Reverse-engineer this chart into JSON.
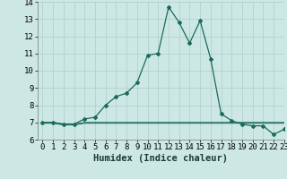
{
  "x": [
    0,
    1,
    2,
    3,
    4,
    5,
    6,
    7,
    8,
    9,
    10,
    11,
    12,
    13,
    14,
    15,
    16,
    17,
    18,
    19,
    20,
    21,
    22,
    23
  ],
  "y_main": [
    7.0,
    7.0,
    6.9,
    6.9,
    7.2,
    7.3,
    8.0,
    8.5,
    8.7,
    9.3,
    10.9,
    11.0,
    13.7,
    12.8,
    11.6,
    12.9,
    10.7,
    7.5,
    7.1,
    6.9,
    6.8,
    6.8,
    6.3,
    6.6
  ],
  "y_flat1": [
    7.0,
    7.0,
    6.9,
    6.9,
    7.0,
    7.0,
    7.0,
    7.0,
    7.0,
    7.0,
    7.0,
    7.0,
    7.0,
    7.0,
    7.0,
    7.0,
    7.0,
    7.0,
    7.0,
    7.0,
    7.0,
    7.0,
    7.0,
    7.0
  ],
  "y_flat2": [
    6.95,
    6.95,
    6.85,
    6.85,
    6.95,
    6.95,
    6.95,
    6.95,
    6.95,
    6.95,
    6.95,
    6.95,
    6.95,
    6.95,
    6.95,
    6.95,
    6.95,
    6.95,
    6.95,
    6.95,
    6.95,
    6.95,
    6.95,
    6.95
  ],
  "line_color": "#1a6b5a",
  "bg_color": "#cde8e4",
  "grid_color": "#aacfca",
  "xlabel": "Humidex (Indice chaleur)",
  "ylim": [
    6,
    14
  ],
  "xlim": [
    -0.5,
    23
  ],
  "yticks": [
    6,
    7,
    8,
    9,
    10,
    11,
    12,
    13,
    14
  ],
  "xticks": [
    0,
    1,
    2,
    3,
    4,
    5,
    6,
    7,
    8,
    9,
    10,
    11,
    12,
    13,
    14,
    15,
    16,
    17,
    18,
    19,
    20,
    21,
    22,
    23
  ],
  "xlabel_fontsize": 7.5,
  "tick_fontsize": 6.5
}
